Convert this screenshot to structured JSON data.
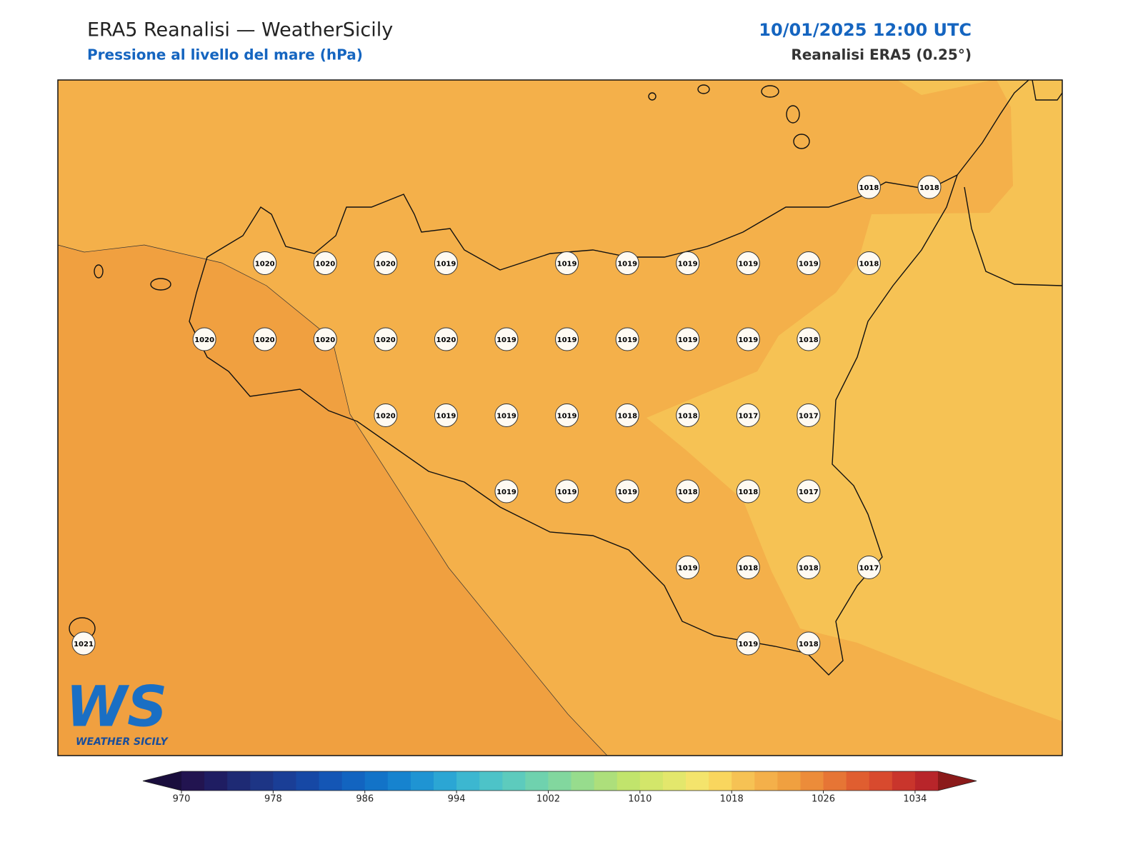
{
  "header": {
    "title": "ERA5 Reanalisi — WeatherSicily",
    "subtitle": "Pressione al livello del mare (hPa)",
    "datetime": "10/01/2025 12:00 UTC",
    "source": "Reanalisi ERA5 (0.25°)"
  },
  "logo": {
    "text": "WS",
    "caption": "WEATHER SICILY"
  },
  "stations": {
    "rows": [
      [
        null,
        null,
        null,
        null,
        null,
        null,
        null,
        null,
        null,
        null,
        null,
        null,
        null,
        1018,
        1018
      ],
      [
        null,
        null,
        null,
        1020,
        1020,
        1020,
        1019,
        null,
        1019,
        1019,
        1019,
        1019,
        1019,
        1018,
        null
      ],
      [
        null,
        null,
        1020,
        1020,
        1020,
        1020,
        1020,
        1019,
        1019,
        1019,
        1019,
        1019,
        1018,
        null,
        null
      ],
      [
        null,
        null,
        null,
        null,
        null,
        1020,
        1019,
        1019,
        1019,
        1018,
        1018,
        1017,
        1017,
        null,
        null
      ],
      [
        null,
        null,
        null,
        null,
        null,
        null,
        null,
        1019,
        1019,
        1019,
        1018,
        1018,
        1017,
        null,
        null
      ],
      [
        null,
        null,
        null,
        null,
        null,
        null,
        null,
        null,
        null,
        null,
        1019,
        1018,
        1018,
        1017,
        null
      ],
      [
        1021,
        null,
        null,
        null,
        null,
        null,
        null,
        null,
        null,
        null,
        null,
        1019,
        1018,
        null,
        null
      ]
    ]
  },
  "colorbar": {
    "lim": [
      970,
      1036
    ],
    "ticks": [
      970,
      978,
      986,
      994,
      1002,
      1010,
      1018,
      1026,
      1034
    ],
    "colors": [
      "#221450",
      "#1f1d62",
      "#1e2a74",
      "#1d3585",
      "#1a3e96",
      "#1648a5",
      "#1456b5",
      "#1264c0",
      "#1273c8",
      "#1683cf",
      "#1f94d3",
      "#2ba6d4",
      "#3cb7d0",
      "#4dc3c8",
      "#5dcbbd",
      "#6fd2ae",
      "#82d79e",
      "#97dc8d",
      "#addf7b",
      "#c1e46c",
      "#d3e66a",
      "#e3e76c",
      "#f4e46c",
      "#f9d65e",
      "#f6c254",
      "#f4b04a",
      "#f0a040",
      "#ec8c3a",
      "#e67535",
      "#e05e30",
      "#d84a2e",
      "#c9352c",
      "#b8252a"
    ],
    "under_color": "#1a0e3d",
    "over_color": "#8b1a1a"
  }
}
